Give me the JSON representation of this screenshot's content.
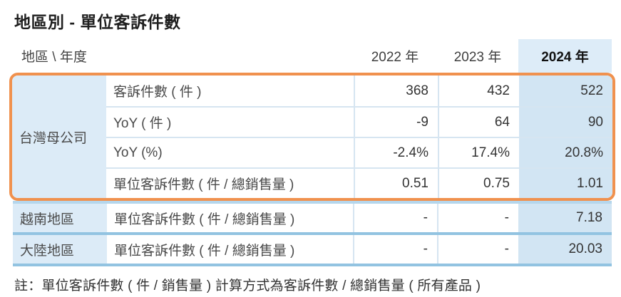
{
  "title": "地區別 - 單位客訴件數",
  "table": {
    "corner_label": "地區 \\ 年度",
    "year_headers": [
      "2022 年",
      "2023 年",
      "2024 年"
    ],
    "highlighted_year": "2024 年",
    "groups": [
      {
        "region": "台灣母公司",
        "rows": [
          {
            "metric": "客訴件數 ( 件 )",
            "values": [
              "368",
              "432",
              "522"
            ]
          },
          {
            "metric": "YoY ( 件 )",
            "values": [
              "-9",
              "64",
              "90"
            ]
          },
          {
            "metric": "YoY (%)",
            "values": [
              "-2.4%",
              "17.4%",
              "20.8%"
            ]
          },
          {
            "metric": "單位客訴件數 ( 件 / 總銷售量 )",
            "values": [
              "0.51",
              "0.75",
              "1.01"
            ]
          }
        ]
      }
    ],
    "simple_rows": [
      {
        "region": "越南地區",
        "metric": "單位客訴件數 ( 件 / 總銷售量 )",
        "values": [
          "-",
          "-",
          "7.18"
        ]
      },
      {
        "region": "大陸地區",
        "metric": "單位客訴件數 ( 件 / 總銷售量 )",
        "values": [
          "-",
          "-",
          "20.03"
        ]
      }
    ]
  },
  "note": "註：單位客訴件數 ( 件 / 銷售量 ) 計算方式為客訴件數 / 總銷售量 ( 所有產品 )",
  "colors": {
    "highlight_border": "#F0914E",
    "region_cell_bg": "#DCEBF7",
    "year_2024_header_bg": "#DDECF8",
    "year_2024_cell_bg": "#D2E5F3",
    "thin_grid_line": "#D6E5F1",
    "thick_separator": "#92C3E1"
  }
}
